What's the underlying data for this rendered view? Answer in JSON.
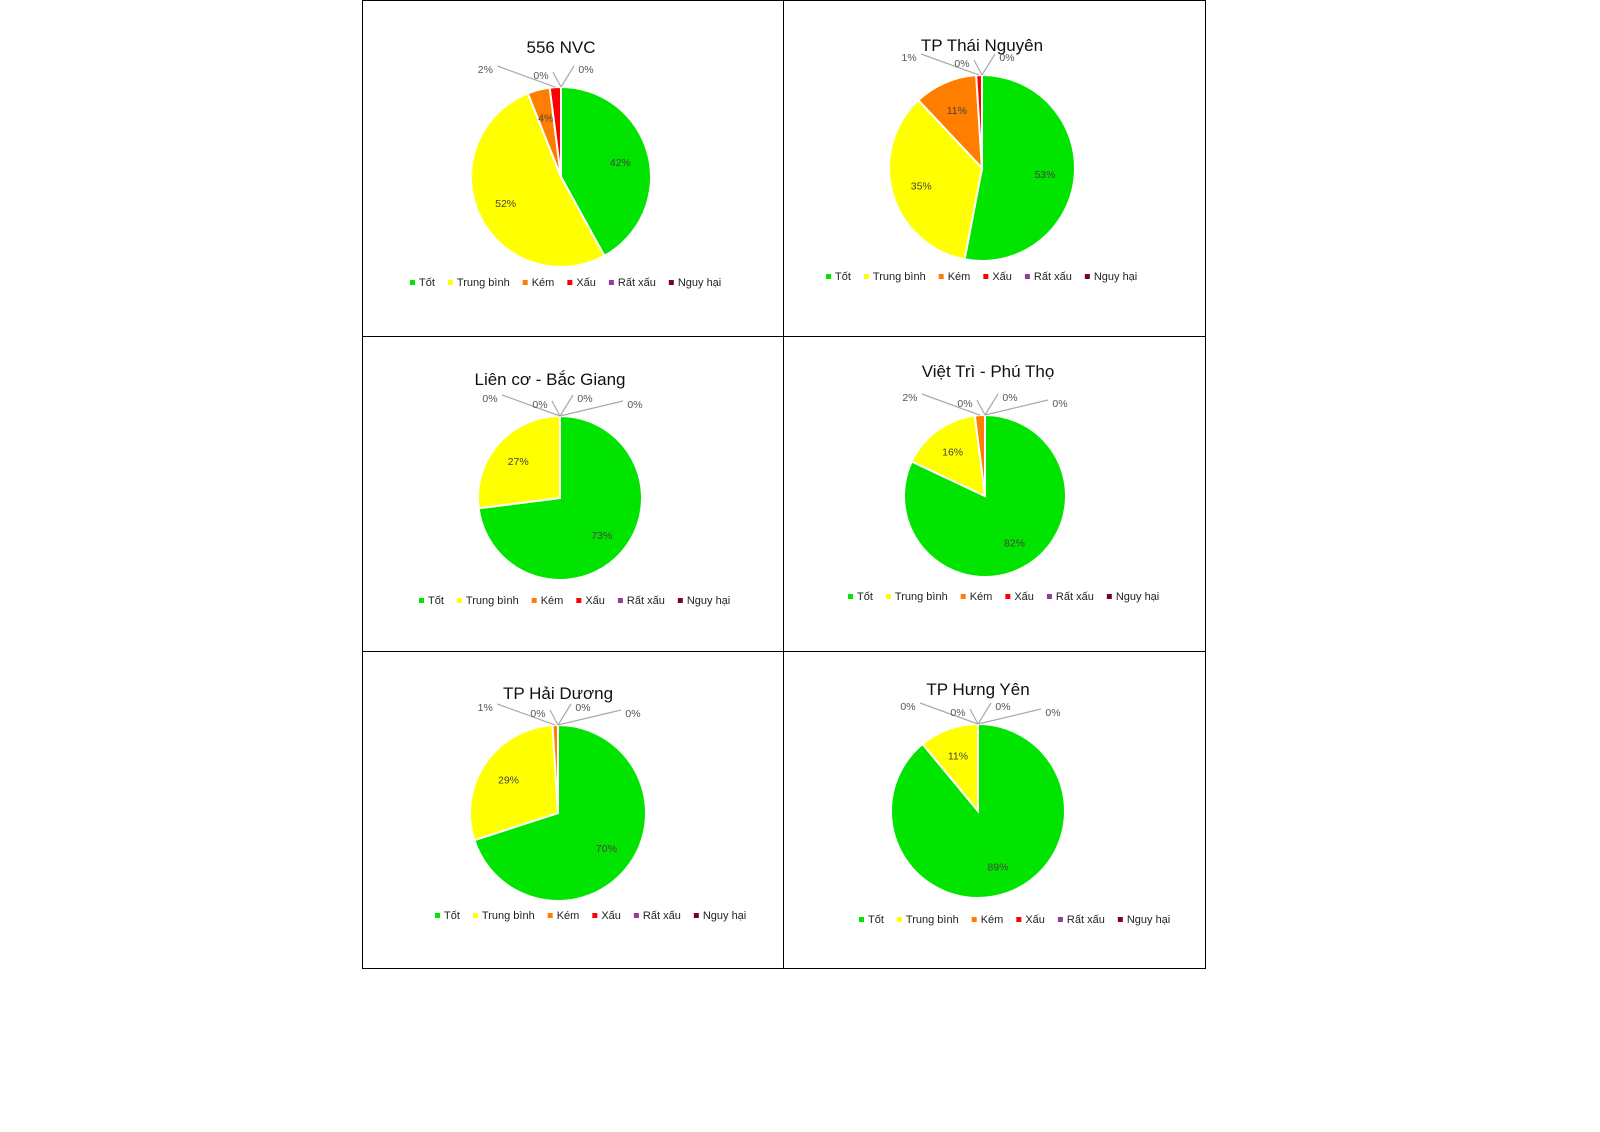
{
  "chart_data": [
    {
      "type": "pie",
      "title": "556 NVC",
      "categories": [
        "Tốt",
        "Trung bình",
        "Kém",
        "Xấu",
        "Rất xấu",
        "Nguy hại"
      ],
      "values": [
        42,
        52,
        4,
        2,
        0,
        0
      ],
      "legend": "bottom"
    },
    {
      "type": "pie",
      "title": "TP Thái Nguyên",
      "categories": [
        "Tốt",
        "Trung bình",
        "Kém",
        "Xấu",
        "Rất xấu",
        "Nguy hại"
      ],
      "values": [
        53,
        35,
        11,
        1,
        0,
        0
      ],
      "legend": "bottom"
    },
    {
      "type": "pie",
      "title": "Liên cơ - Bắc Giang",
      "categories": [
        "Tốt",
        "Trung bình",
        "Kém",
        "Xấu",
        "Rất xấu",
        "Nguy hại"
      ],
      "values": [
        73,
        27,
        0,
        0,
        0,
        0
      ],
      "legend": "bottom"
    },
    {
      "type": "pie",
      "title": "Việt Trì - Phú Thọ",
      "categories": [
        "Tốt",
        "Trung bình",
        "Kém",
        "Xấu",
        "Rất xấu",
        "Nguy hại"
      ],
      "values": [
        82,
        16,
        2,
        0,
        0,
        0
      ],
      "legend": "bottom"
    },
    {
      "type": "pie",
      "title": "TP Hải Dương",
      "categories": [
        "Tốt",
        "Trung bình",
        "Kém",
        "Xấu",
        "Rất xấu",
        "Nguy hại"
      ],
      "values": [
        70,
        29,
        1,
        0,
        0,
        0
      ],
      "legend": "bottom"
    },
    {
      "type": "pie",
      "title": "TP Hưng Yên",
      "categories": [
        "Tốt",
        "Trung bình",
        "Kém",
        "Xấu",
        "Rất xấu",
        "Nguy hại"
      ],
      "values": [
        89,
        11,
        0,
        0,
        0,
        0
      ],
      "legend": "bottom"
    }
  ],
  "colors": [
    "#00e400",
    "#ffff00",
    "#ff7e00",
    "#ff0000",
    "#8f3f97",
    "#7e0023"
  ]
}
